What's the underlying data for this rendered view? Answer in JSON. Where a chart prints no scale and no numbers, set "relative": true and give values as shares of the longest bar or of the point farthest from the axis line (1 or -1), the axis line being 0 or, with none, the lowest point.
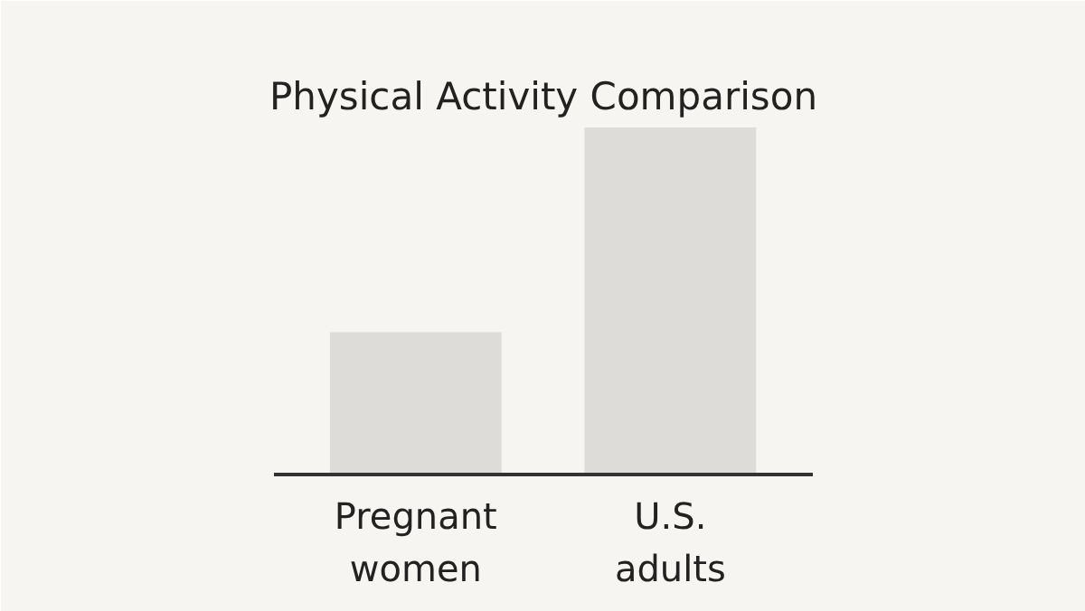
{
  "chart_data": {
    "type": "bar",
    "title": "Physical Activity Comparison",
    "categories": [
      "Pregnant women",
      "U.S. adults"
    ],
    "values": [
      0.41,
      1
    ],
    "color": "#dddcd9",
    "relative": true
  }
}
